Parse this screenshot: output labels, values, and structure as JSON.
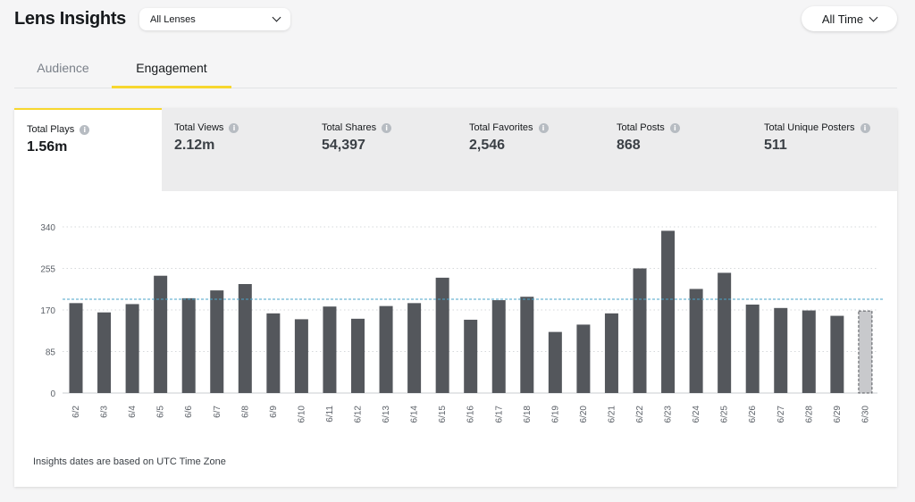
{
  "header": {
    "title": "Lens Insights",
    "lens_select": "All Lenses",
    "time_select": "All Time"
  },
  "tabs": [
    {
      "label": "Audience",
      "active": false
    },
    {
      "label": "Engagement",
      "active": true
    }
  ],
  "metrics": [
    {
      "label": "Total Plays",
      "value": "1.56m",
      "active": true
    },
    {
      "label": "Total Views",
      "value": "2.12m",
      "active": false
    },
    {
      "label": "Total Shares",
      "value": "54,397",
      "active": false
    },
    {
      "label": "Total Favorites",
      "value": "2,546",
      "active": false
    },
    {
      "label": "Total Posts",
      "value": "868",
      "active": false
    },
    {
      "label": "Total Unique Posters",
      "value": "511",
      "active": false
    }
  ],
  "info_icon_glyph": "i",
  "note": "Insights dates are based on UTC Time Zone",
  "colors": {
    "accent": "#f7d72f",
    "bar": "#54575c",
    "avg_line": "#4aa3c9"
  },
  "chart_data": {
    "type": "bar",
    "categories": [
      "6/2",
      "6/3",
      "6/4",
      "6/5",
      "6/6",
      "6/7",
      "6/8",
      "6/9",
      "6/10",
      "6/11",
      "6/12",
      "6/13",
      "6/14",
      "6/15",
      "6/16",
      "6/17",
      "6/18",
      "6/19",
      "6/20",
      "6/21",
      "6/22",
      "6/23",
      "6/24",
      "6/25",
      "6/26",
      "6/27",
      "6/28",
      "6/29",
      "6/30"
    ],
    "values": [
      184,
      165,
      182,
      240,
      194,
      210,
      223,
      163,
      151,
      177,
      152,
      178,
      184,
      236,
      150,
      190,
      197,
      125,
      140,
      163,
      255,
      332,
      213,
      246,
      181,
      174,
      169,
      158,
      168
    ],
    "partial_last": true,
    "average": 192,
    "yticks": [
      0,
      85,
      170,
      255,
      340
    ],
    "ylim": [
      0,
      340
    ],
    "grid": true
  }
}
